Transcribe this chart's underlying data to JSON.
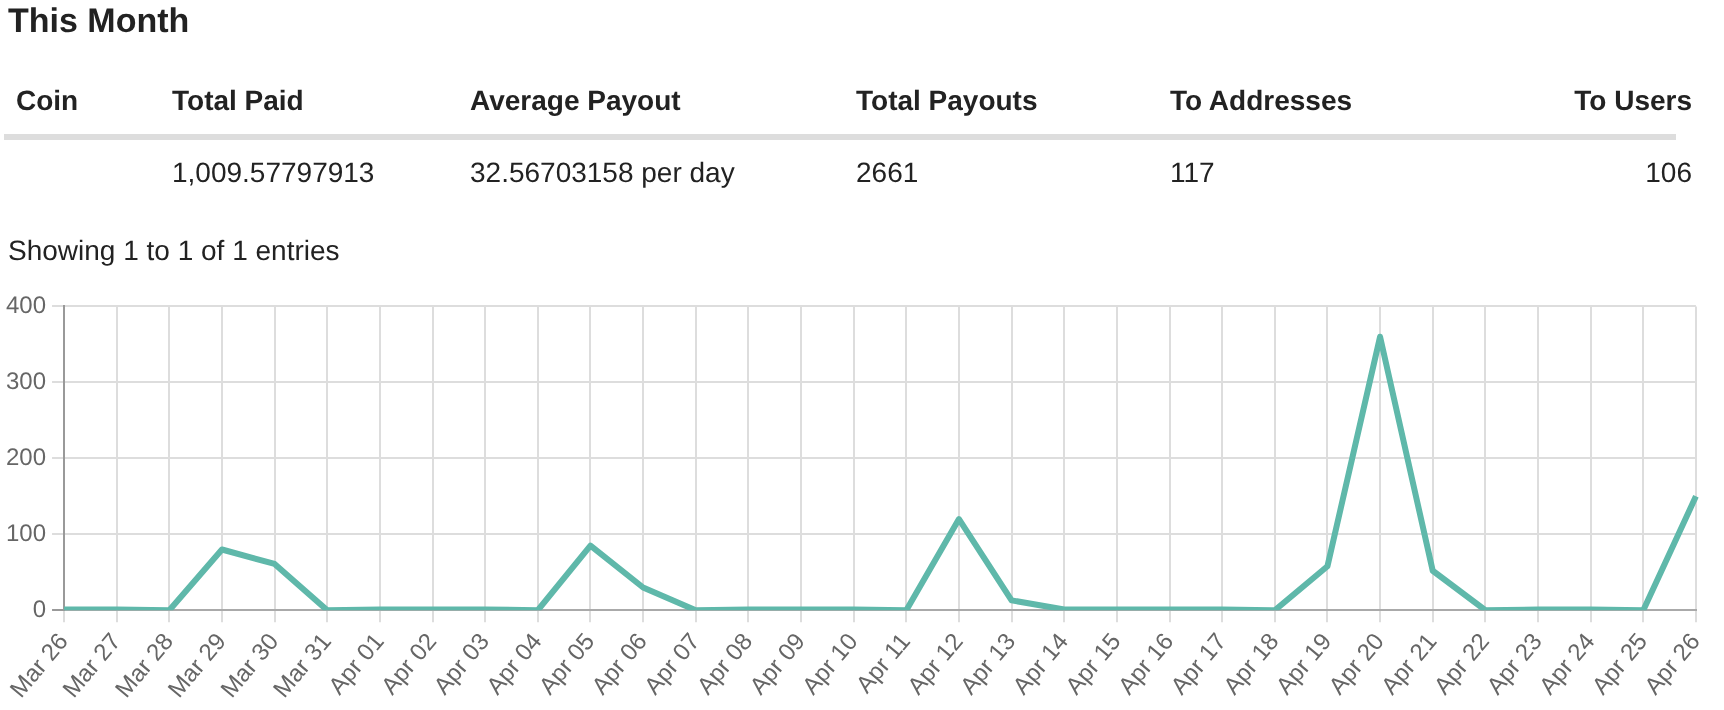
{
  "chart_data": [
    {
      "type": "other",
      "title": "This Month",
      "annotations": [
        "Coin",
        "Total Paid",
        "Average Payout",
        "Total Payouts",
        "To Addresses",
        "To Users",
        "1,009.57797913",
        "32.56703158 per day",
        "2661",
        "117",
        "106",
        "Showing 1 to 1 of 1 entries"
      ]
    },
    {
      "type": "line",
      "categories": [
        "Mar 26",
        "Mar 27",
        "Mar 28",
        "Mar 29",
        "Mar 30",
        "Mar 31",
        "Apr 01",
        "Apr 02",
        "Apr 03",
        "Apr 04",
        "Apr 05",
        "Apr 06",
        "Apr 07",
        "Apr 08",
        "Apr 09",
        "Apr 10",
        "Apr 11",
        "Apr 12",
        "Apr 13",
        "Apr 14",
        "Apr 15",
        "Apr 16",
        "Apr 17",
        "Apr 18",
        "Apr 19",
        "Apr 20",
        "Apr 21",
        "Apr 22",
        "Apr 23",
        "Apr 24",
        "Apr 25",
        "Apr 26"
      ],
      "series": [
        {
          "color": "#5fb8aa",
          "values": [
            1,
            1,
            0,
            80,
            61,
            0,
            1,
            1,
            1,
            0,
            85,
            30,
            0,
            1,
            1,
            1,
            0,
            120,
            13,
            1,
            1,
            1,
            1,
            0,
            58,
            360,
            52,
            0,
            1,
            1,
            0,
            150
          ]
        }
      ],
      "ylim": [
        0,
        400
      ],
      "yticks": [
        0,
        100,
        200,
        300,
        400
      ],
      "grid": true,
      "marker": "none",
      "line_style": "solid"
    }
  ]
}
